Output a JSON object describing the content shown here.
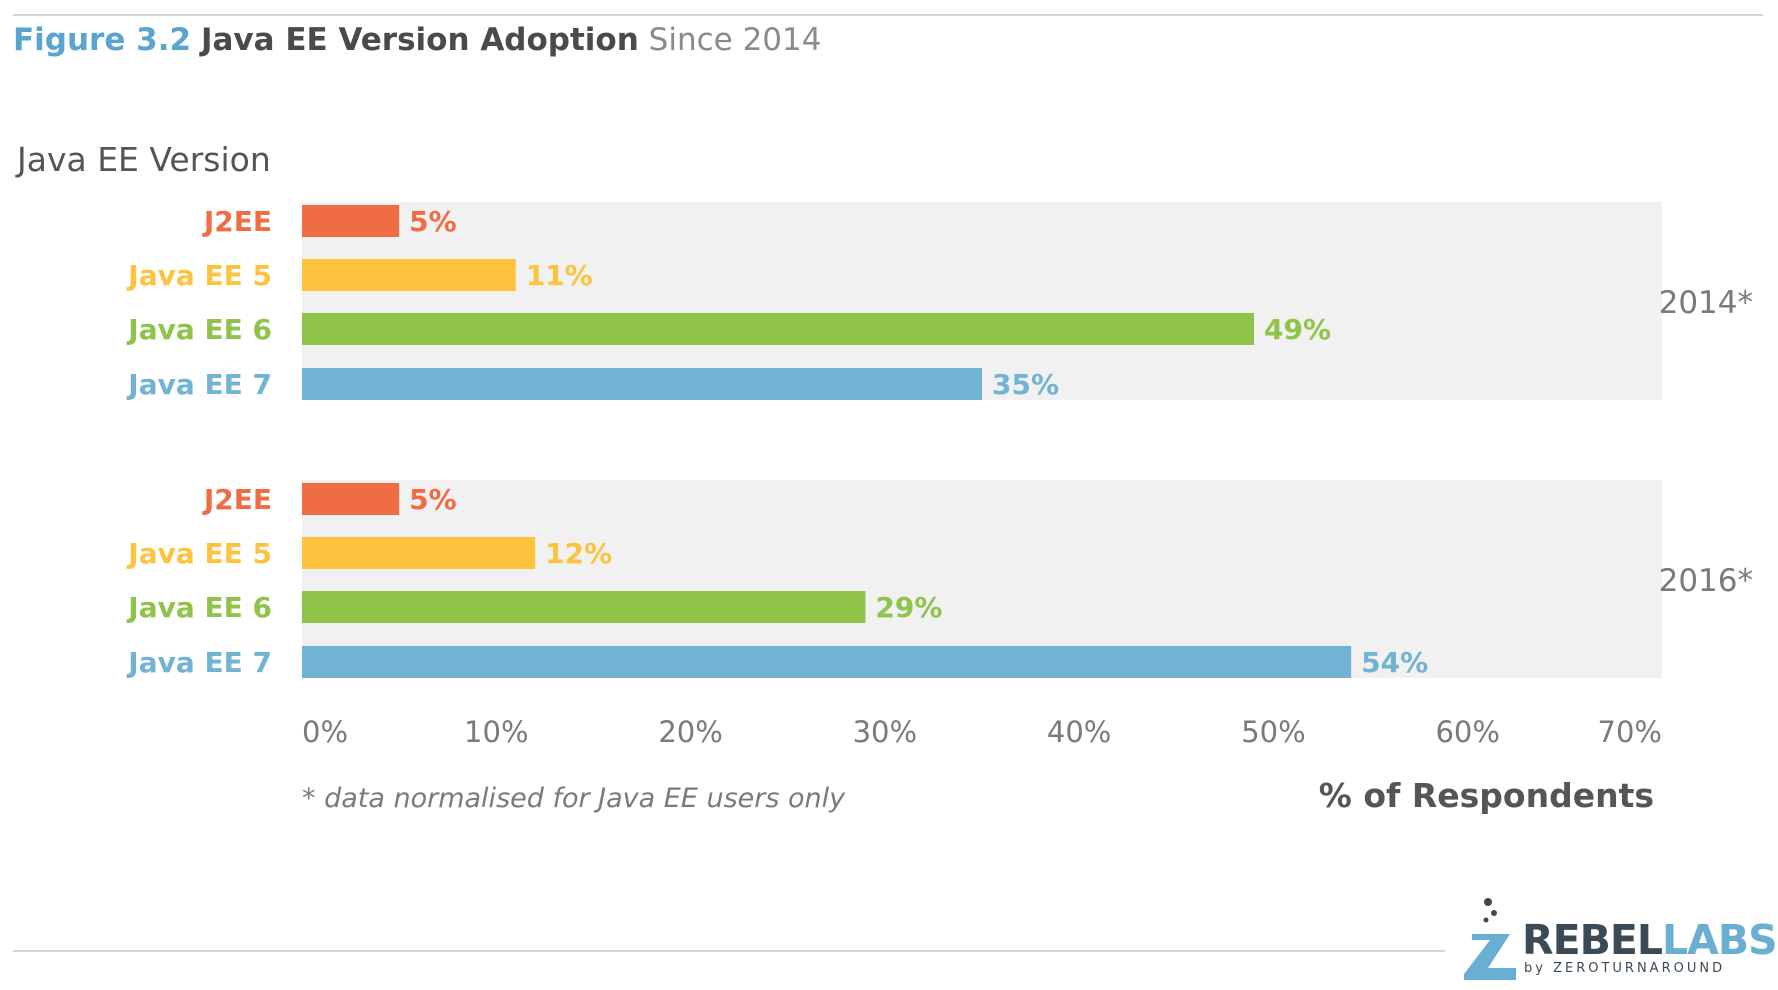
{
  "header": {
    "figure_label": "Figure 3.2",
    "title": "Java EE Version Adoption",
    "subtitle": "Since 2014"
  },
  "footnote": "* data normalised for Java EE users only",
  "logo": {
    "main": "REBEL",
    "accent": "LABS",
    "by": "by ZEROTURNAROUND"
  },
  "chart_data": {
    "type": "bar",
    "orientation": "horizontal",
    "ylabel": "Java EE Version",
    "xlabel": "% of Respondents",
    "xlim": [
      0,
      70
    ],
    "x_ticks": [
      0,
      10,
      20,
      30,
      40,
      50,
      60,
      70
    ],
    "x_tick_labels": [
      "0%",
      "10%",
      "20%",
      "30%",
      "40%",
      "50%",
      "60%",
      "70%"
    ],
    "grid": false,
    "groups": [
      {
        "name": "2014*",
        "categories": [
          "J2EE",
          "Java EE 5",
          "Java EE 6",
          "Java EE 7"
        ],
        "values": [
          5,
          11,
          49,
          35
        ],
        "labels": [
          "5%",
          "11%",
          "49%",
          "35%"
        ]
      },
      {
        "name": "2016*",
        "categories": [
          "J2EE",
          "Java EE 5",
          "Java EE 6",
          "Java EE 7"
        ],
        "values": [
          5,
          12,
          29,
          54
        ],
        "labels": [
          "5%",
          "12%",
          "29%",
          "54%"
        ]
      }
    ],
    "category_colors": [
      "#ef6c45",
      "#fdc33f",
      "#8fc34a",
      "#72b2d3"
    ],
    "panel_color": "#f1f1f1",
    "label_color": "#7a7a7a"
  }
}
